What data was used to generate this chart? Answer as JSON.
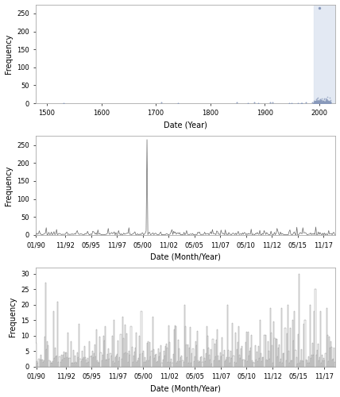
{
  "fig_width": 4.28,
  "fig_height": 5.0,
  "dpi": 100,
  "background_color": "#ffffff",
  "panel_bg": "#ffffff",
  "highlight_color": "#dde4f0",
  "scatter_color": "#8899bb",
  "line_color": "#666666",
  "bar_edge_color": "#888888",
  "bar_fill_color": "#ffffff",
  "panel_a": {
    "xlabel": "Date (Year)",
    "ylabel": "Frequency",
    "xlim": [
      1480,
      2030
    ],
    "ylim": [
      0,
      275
    ],
    "yticks": [
      0,
      50,
      100,
      150,
      200,
      250
    ],
    "xticks": [
      1500,
      1600,
      1700,
      1800,
      1900,
      2000
    ],
    "highlight_xmin": 1990,
    "highlight_xmax": 2030
  },
  "panel_b": {
    "xlabel": "Date (Month/Year)",
    "ylabel": "Frequency",
    "ylim": [
      0,
      275
    ],
    "yticks": [
      0,
      50,
      100,
      150,
      200,
      250
    ],
    "xtick_labels": [
      "01/90",
      "11/92",
      "05/95",
      "11/97",
      "05/00",
      "11/02",
      "05/05",
      "11/07",
      "05/10",
      "11/12",
      "05/15",
      "11/17"
    ],
    "xtick_positions": [
      0,
      34,
      64,
      94,
      124,
      154,
      184,
      214,
      244,
      274,
      304,
      334
    ],
    "spike_idx": 129,
    "spike_value": 265,
    "n_months": 348
  },
  "panel_c": {
    "xlabel": "Date (Month/Year)",
    "ylabel": "Frequency",
    "ylim": [
      0,
      32
    ],
    "yticks": [
      0,
      5,
      10,
      15,
      20,
      25,
      30
    ],
    "xtick_labels": [
      "01/90",
      "11/92",
      "05/95",
      "11/97",
      "05/00",
      "11/02",
      "05/05",
      "11/07",
      "05/10",
      "11/12",
      "05/15",
      "11/17"
    ],
    "xtick_positions": [
      0,
      34,
      64,
      94,
      124,
      154,
      184,
      214,
      244,
      274,
      304,
      334
    ],
    "n_months": 348
  }
}
